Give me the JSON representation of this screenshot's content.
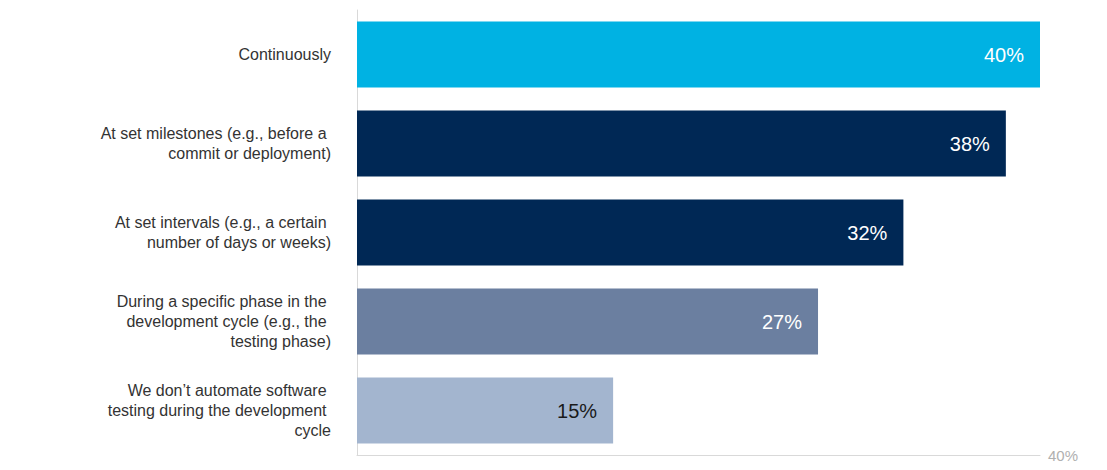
{
  "chart_data": {
    "type": "bar",
    "orientation": "horizontal",
    "categories": [
      "Continuously",
      "At set milestones (e.g., before a commit or deployment)",
      "At set intervals (e.g., a certain number of days or weeks)",
      "During a specific phase in the development cycle (e.g., the testing phase)",
      "We don’t automate software testing during the development cycle"
    ],
    "values": [
      40,
      38,
      32,
      27,
      15
    ],
    "value_labels": [
      "40%",
      "38%",
      "32%",
      "27%",
      "15%"
    ],
    "colors": [
      "#00b2e3",
      "#002855",
      "#002855",
      "#6b7fa0",
      "#a3b5cf"
    ],
    "data_labels": true,
    "xlim": [
      0,
      40
    ],
    "xticks": [
      {
        "value": 40,
        "label": "40%"
      }
    ],
    "grid": false
  }
}
